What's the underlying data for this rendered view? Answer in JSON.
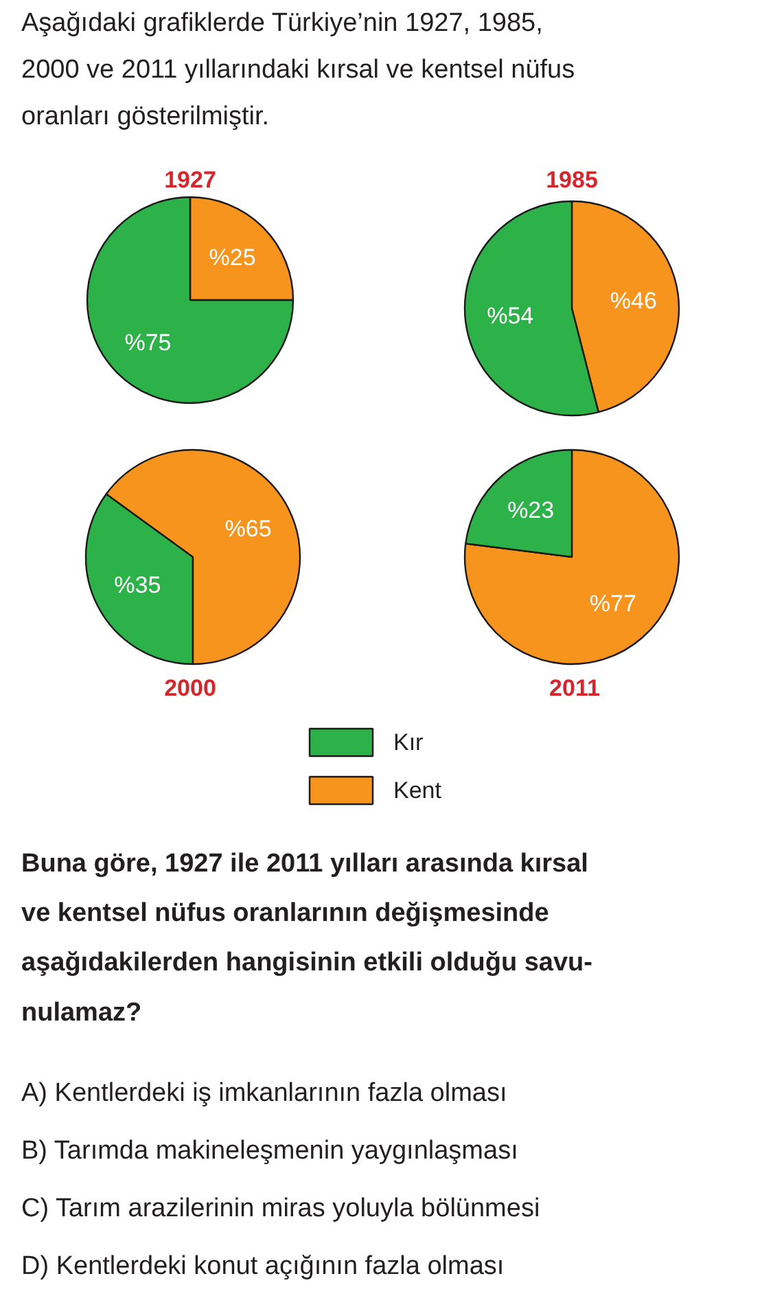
{
  "chart_data": [
    {
      "type": "pie",
      "title": "1927",
      "categories": [
        "Kent",
        "Kır"
      ],
      "values": [
        25,
        75
      ],
      "colors": [
        "#f7941d",
        "#2db24a"
      ],
      "value_labels": [
        "%25",
        "%75"
      ],
      "legend": "bottom",
      "annotations": [
        "Aşağıdaki grafiklerde Türkiye’nin 1927, 1985,\n2000 ve 2011 yıllarındaki kırsal ve kentsel nüfus\noranları gösterilmiştir."
      ]
    },
    {
      "type": "pie",
      "title": "1985",
      "categories": [
        null,
        null
      ],
      "values": [
        46,
        54
      ],
      "colors": [
        "#f7941d",
        "#2db24a"
      ],
      "value_labels": [
        "%46",
        "%54"
      ]
    },
    {
      "type": "pie",
      "title": "2000",
      "categories": [
        null,
        null
      ],
      "values": [
        35,
        65
      ],
      "colors": [
        "#2db24a",
        "#f7941d"
      ],
      "value_labels": [
        "%35",
        "%65"
      ]
    },
    {
      "type": "pie",
      "title": "2011",
      "categories": [
        null,
        null
      ],
      "values": [
        77,
        23
      ],
      "colors": [
        "#f7941d",
        "#2db24a"
      ],
      "value_labels": [
        "%77",
        "%23"
      ],
      "annotations": [
        "Buna göre, 1927 ile 2011 yılları arasında kırsal\nve kentsel nüfus oranlarının değişmesinde\naşağıdakilerden hangisinin etkili olduğu savu-\nnulamaz?",
        "A)  Kentlerdeki iş imkanlarının fazla olması",
        "B)  Tarımda makineleşmenin yaygınlaşması",
        "C)  Tarım arazilerinin miras yoluyla bölünmesi",
        "D)  Kentlerdeki konut açığının fazla olması"
      ]
    }
  ]
}
